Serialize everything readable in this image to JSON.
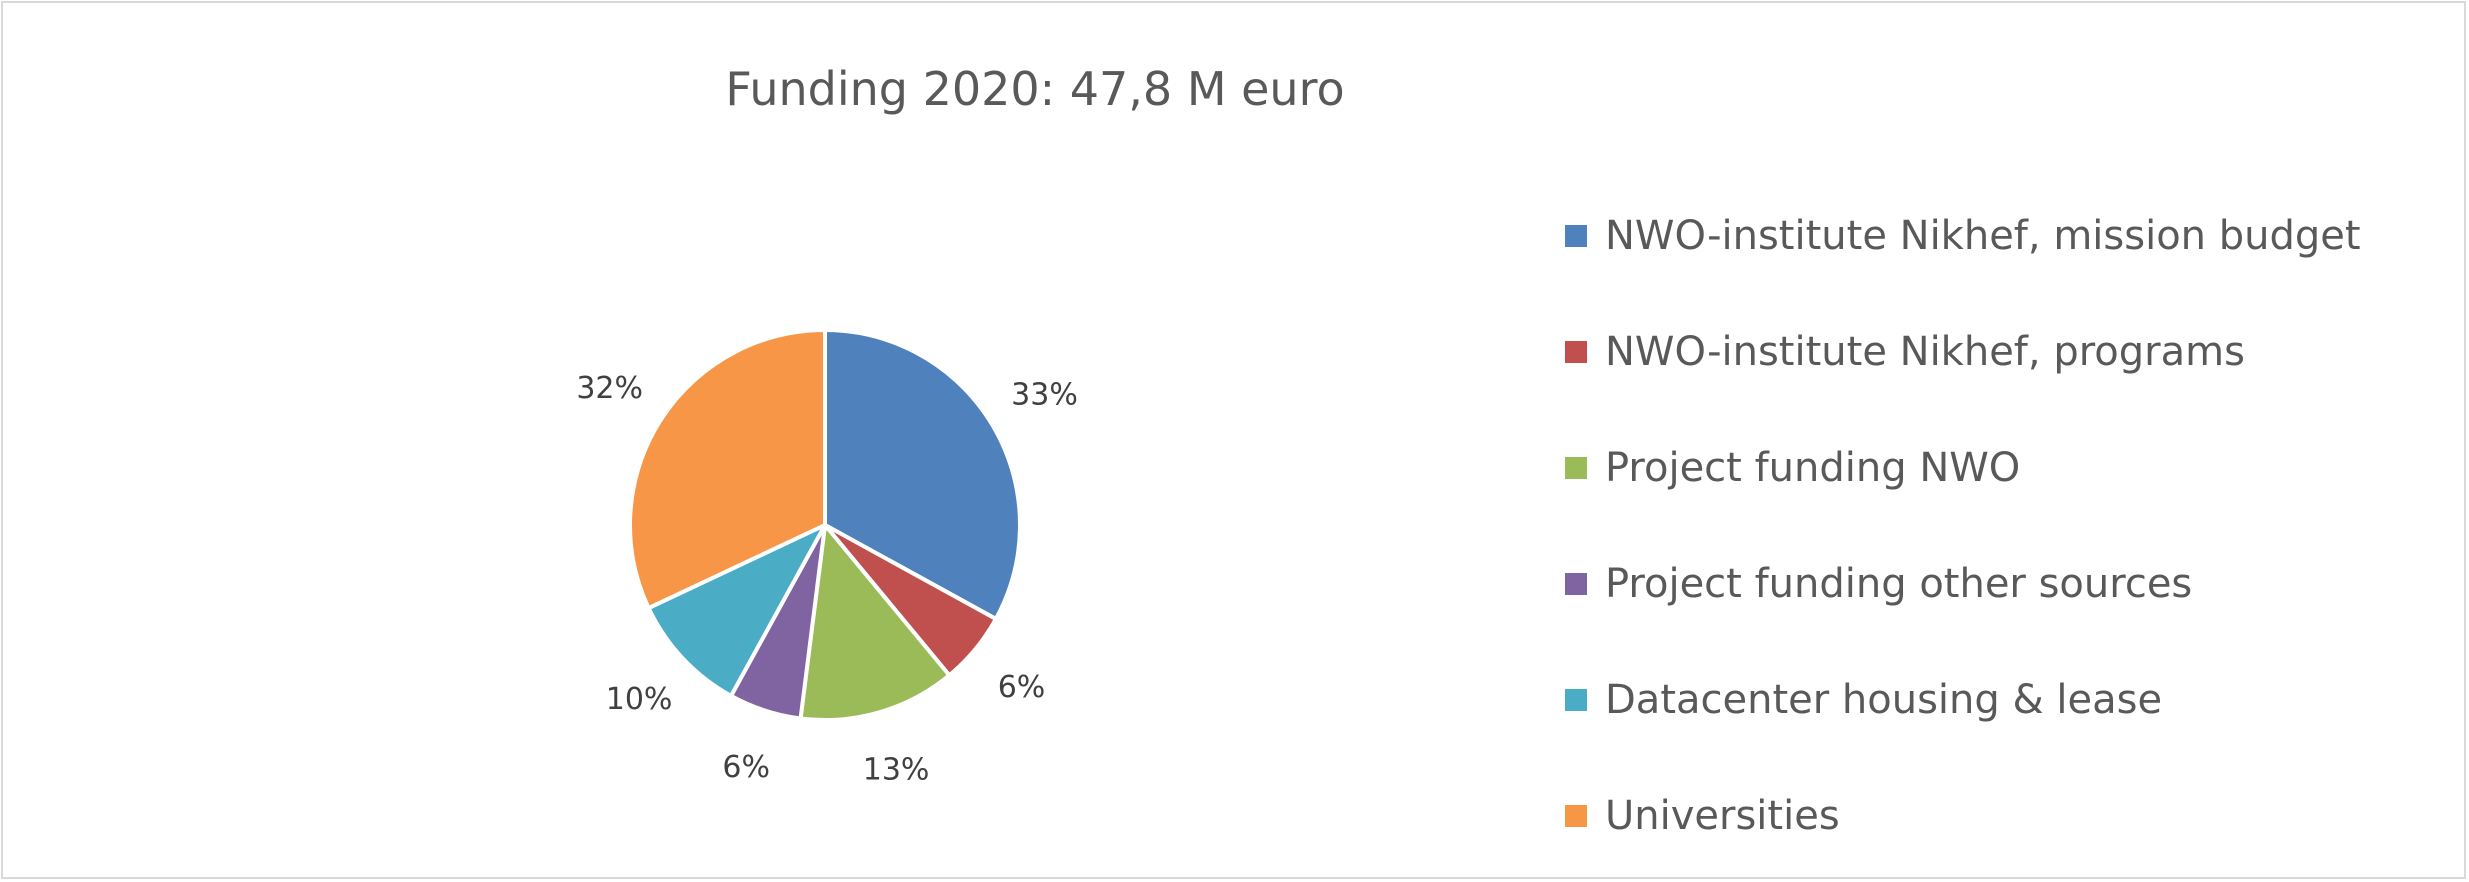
{
  "chart_data": {
    "type": "pie",
    "title": "Funding 2020: 47,8 M euro",
    "categories": [
      "NWO-institute Nikhef, mission budget",
      "NWO-institute Nikhef, programs",
      "Project funding NWO",
      "Project funding other sources",
      "Datacenter housing & lease",
      "Universities"
    ],
    "values": [
      33,
      6,
      13,
      6,
      10,
      32
    ],
    "labels": [
      "33%",
      "6%",
      "13%",
      "6%",
      "10%",
      "32%"
    ],
    "colors": [
      "#4f81bd",
      "#c0504d",
      "#9bbb59",
      "#8064a2",
      "#4bacc6",
      "#f79646"
    ],
    "legend_position": "right"
  }
}
